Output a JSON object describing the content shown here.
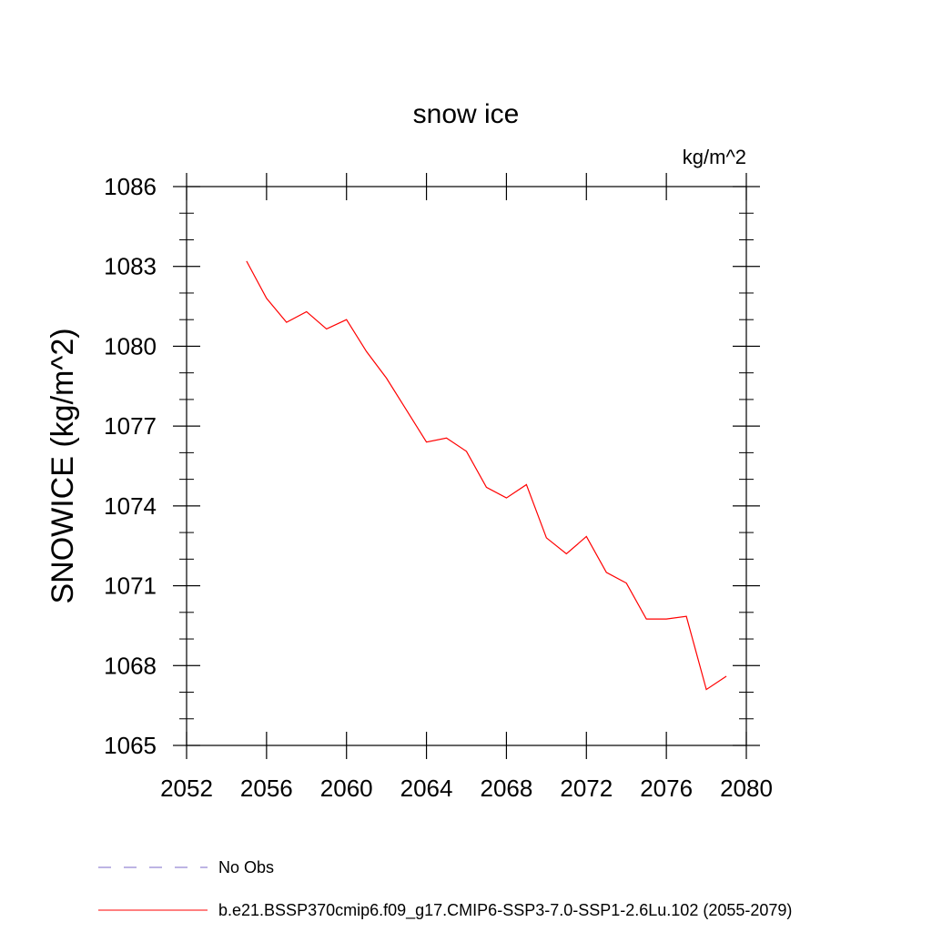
{
  "chart_data": {
    "type": "line",
    "title": "snow ice",
    "units": "kg/m^2",
    "xlabel": "",
    "ylabel": "SNOWICE  (kg/m^2)",
    "xlim": [
      2052,
      2080
    ],
    "ylim": [
      1065,
      1086
    ],
    "xticks": [
      2052,
      2056,
      2060,
      2064,
      2068,
      2072,
      2076,
      2080
    ],
    "yticks": [
      1065,
      1068,
      1071,
      1074,
      1077,
      1080,
      1083,
      1086
    ],
    "xtick_labels": [
      "2052",
      "2056",
      "2060",
      "2064",
      "2068",
      "2072",
      "2076",
      "2080"
    ],
    "ytick_labels": [
      "1065",
      "1068",
      "1071",
      "1074",
      "1077",
      "1080",
      "1083",
      "1086"
    ],
    "grid": false,
    "series": [
      {
        "name": "b.e21.BSSP370cmip6.f09_g17.CMIP6-SSP3-7.0-SSP1-2.6Lu.102 (2055-2079)",
        "color": "#ff0000",
        "x": [
          2055,
          2056,
          2057,
          2058,
          2059,
          2060,
          2061,
          2062,
          2063,
          2064,
          2065,
          2066,
          2067,
          2068,
          2069,
          2070,
          2071,
          2072,
          2073,
          2074,
          2075,
          2076,
          2077,
          2078,
          2079
        ],
        "y": [
          1083.2,
          1081.8,
          1080.9,
          1081.3,
          1080.65,
          1081.0,
          1079.8,
          1078.8,
          1077.6,
          1076.4,
          1076.55,
          1076.05,
          1074.7,
          1074.3,
          1074.8,
          1072.8,
          1072.2,
          1072.85,
          1071.5,
          1071.1,
          1069.75,
          1069.75,
          1069.85,
          1067.1,
          1067.6
        ]
      }
    ],
    "legend": [
      {
        "label": "No Obs",
        "color": "#7b68c8",
        "style": "dashed"
      },
      {
        "label": "b.e21.BSSP370cmip6.f09_g17.CMIP6-SSP3-7.0-SSP1-2.6Lu.102 (2055-2079)",
        "color": "#ff0000",
        "style": "solid"
      }
    ],
    "legend_placement": "bottom"
  }
}
